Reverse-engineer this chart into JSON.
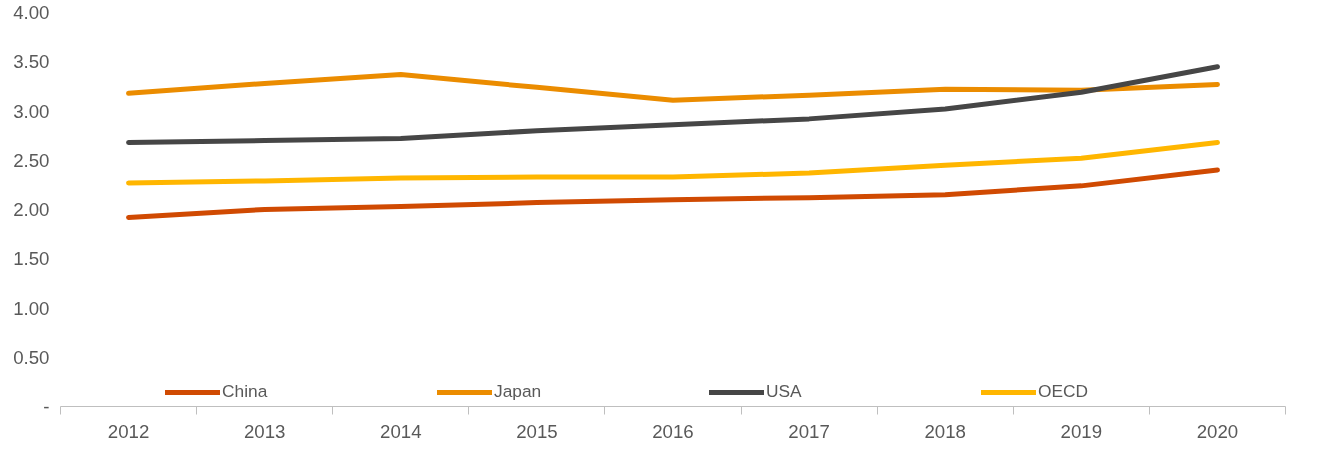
{
  "chart_data": {
    "type": "line",
    "categories": [
      "2012",
      "2013",
      "2014",
      "2015",
      "2016",
      "2017",
      "2018",
      "2019",
      "2020"
    ],
    "series": [
      {
        "name": "China",
        "color": "#d04a02",
        "values": [
          1.92,
          2.0,
          2.03,
          2.07,
          2.1,
          2.12,
          2.15,
          2.24,
          2.4
        ]
      },
      {
        "name": "Japan",
        "color": "#eb8c00",
        "values": [
          3.18,
          3.28,
          3.37,
          3.24,
          3.11,
          3.16,
          3.22,
          3.21,
          3.27
        ]
      },
      {
        "name": "USA",
        "color": "#464646",
        "values": [
          2.68,
          2.7,
          2.72,
          2.8,
          2.86,
          2.92,
          3.02,
          3.19,
          3.45
        ]
      },
      {
        "name": "OECD",
        "color": "#ffb600",
        "values": [
          2.27,
          2.29,
          2.32,
          2.33,
          2.33,
          2.37,
          2.45,
          2.52,
          2.68
        ]
      }
    ],
    "ylim": [
      0,
      4
    ],
    "yticks": [
      {
        "value": 0,
        "label": "-"
      },
      {
        "value": 0.5,
        "label": "0.50"
      },
      {
        "value": 1,
        "label": "1.00"
      },
      {
        "value": 1.5,
        "label": "1.50"
      },
      {
        "value": 2,
        "label": "2.00"
      },
      {
        "value": 2.5,
        "label": "2.50"
      },
      {
        "value": 3,
        "label": "3.00"
      },
      {
        "value": 3.5,
        "label": "3.50"
      },
      {
        "value": 4,
        "label": "4.00"
      }
    ],
    "grid": false,
    "legend": "bottom",
    "line_style": "solid",
    "marker": "none"
  }
}
